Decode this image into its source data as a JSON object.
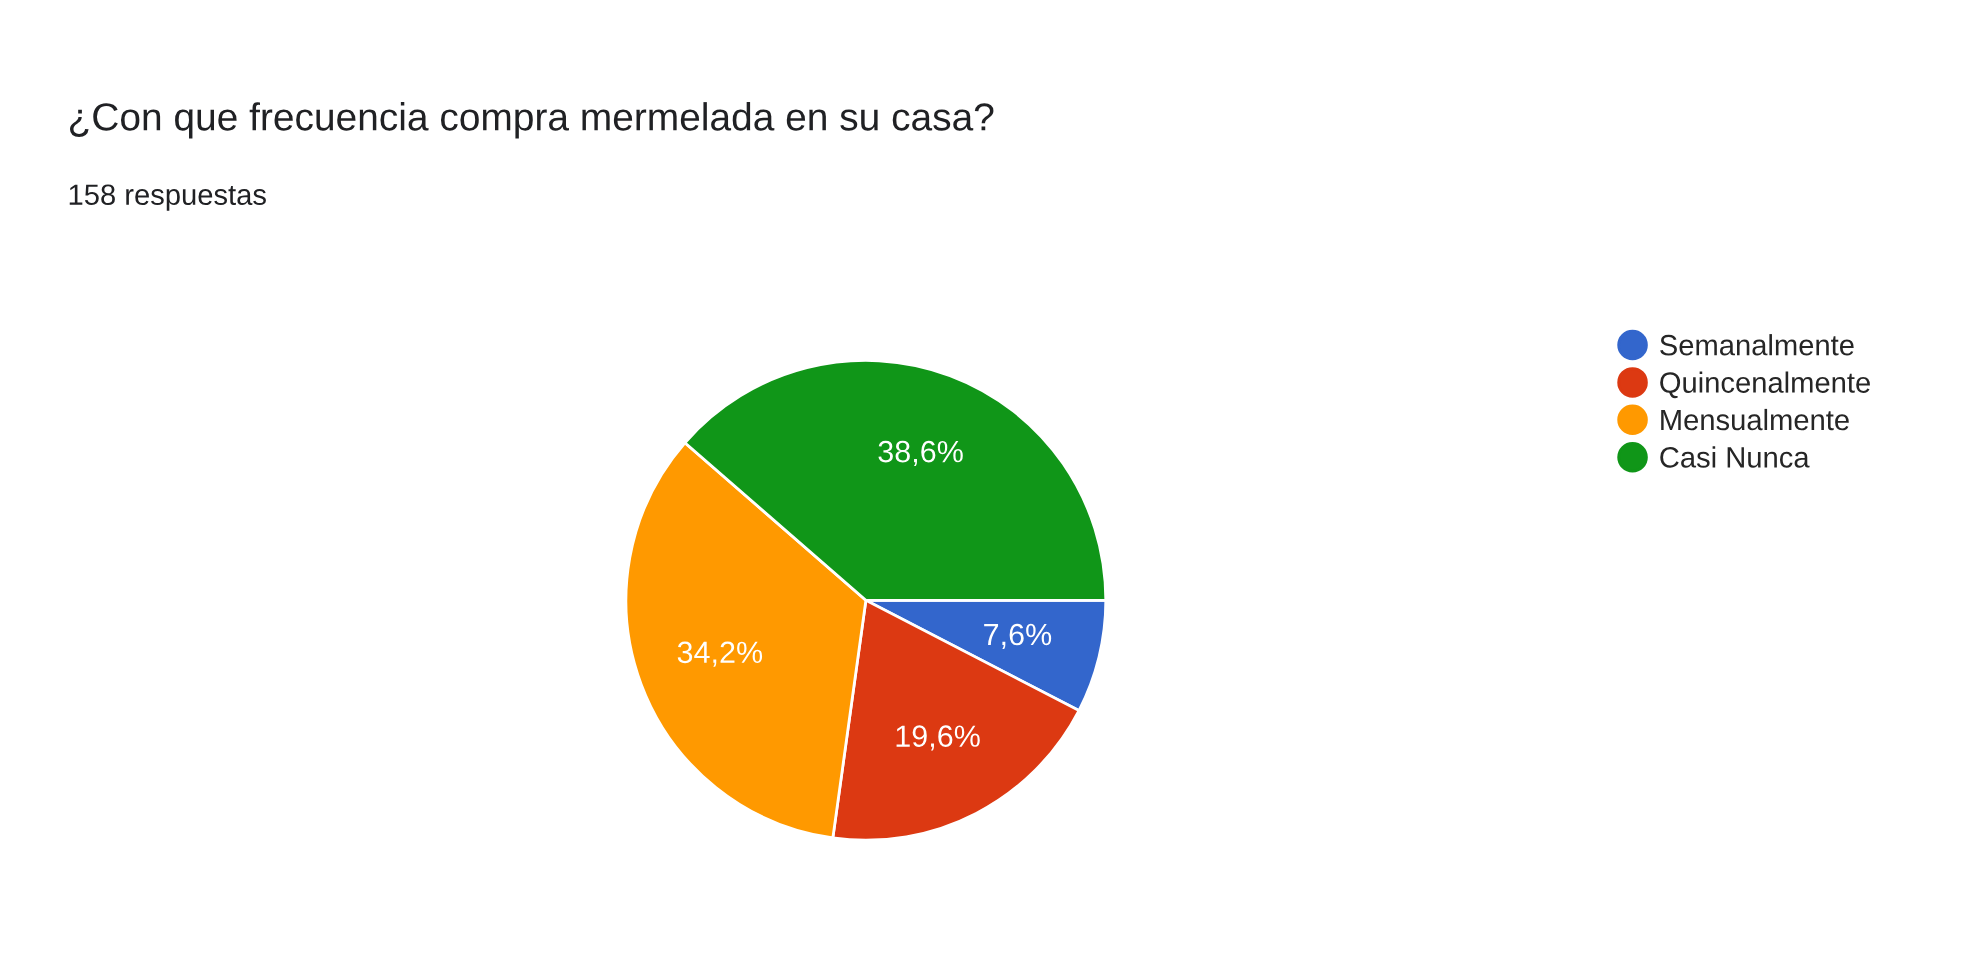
{
  "chart_data": {
    "type": "pie",
    "title": "¿Con que frecuencia compra mermelada en su casa?",
    "subtitle": "158 respuestas",
    "categories": [
      "Semanalmente",
      "Quincenalmente",
      "Mensualmente",
      "Casi Nunca"
    ],
    "values": [
      7.6,
      19.6,
      34.2,
      38.6
    ],
    "colors": [
      "#3366cc",
      "#dc3912",
      "#ff9900",
      "#109618"
    ],
    "value_labels": [
      "7,6%",
      "19,6%",
      "34,2%",
      "38,6%"
    ],
    "legend": "right"
  }
}
